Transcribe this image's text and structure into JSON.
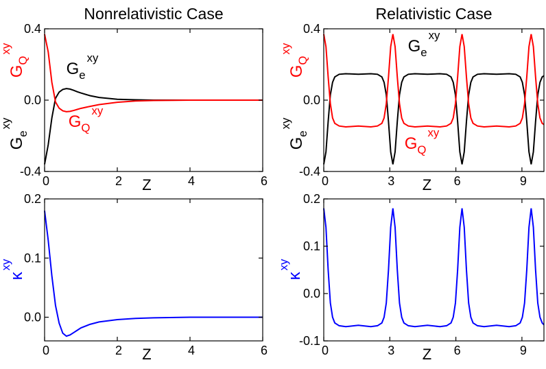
{
  "chart_data": [
    {
      "type": "line",
      "title": "Nonrelativistic Case",
      "x": [
        0,
        0.1,
        0.2,
        0.3,
        0.4,
        0.5,
        0.6,
        0.7,
        0.8,
        0.9,
        1.0,
        1.25,
        1.5,
        2,
        2.5,
        3,
        4,
        5,
        6
      ],
      "series": [
        {
          "color": "#000000",
          "values": [
            -0.36,
            -0.25,
            -0.1,
            0.01,
            0.045,
            0.06,
            0.065,
            0.062,
            0.055,
            0.047,
            0.04,
            0.025,
            0.015,
            0.005,
            0.002,
            0,
            0,
            0,
            0
          ]
        },
        {
          "color": "#ff0000",
          "values": [
            0.37,
            0.27,
            0.1,
            -0.01,
            -0.045,
            -0.06,
            -0.065,
            -0.063,
            -0.058,
            -0.052,
            -0.046,
            -0.035,
            -0.025,
            -0.012,
            -0.005,
            -0.002,
            0,
            0,
            0
          ]
        }
      ],
      "xlim": [
        0,
        6
      ],
      "xticks": [
        0,
        2,
        4,
        6
      ],
      "ylim": [
        -0.4,
        0.4
      ],
      "yticks": [
        -0.4,
        {
          "value": 0,
          "label": "0.0"
        },
        0.4
      ],
      "xlabel": "Z",
      "ylabel": [
        {
          "base": "G",
          "sub": "e",
          "sup": "xy",
          "color": "#000000"
        },
        {
          "base": "G",
          "sub": "Q",
          "sup": "xy",
          "color": "#ff0000"
        }
      ],
      "annotations": [
        {
          "base": "G",
          "sub": "e",
          "sup": "xy",
          "color": "#000000"
        },
        {
          "base": "G",
          "sub": "Q",
          "sup": "xy",
          "color": "#ff0000"
        }
      ]
    },
    {
      "type": "line",
      "title": "Relativistic Case",
      "x": [
        0,
        0.1,
        0.2,
        0.3,
        0.4,
        0.5,
        0.7,
        1.0,
        1.57,
        2.14,
        2.44,
        2.64,
        2.74,
        2.84,
        2.94,
        3.04,
        3.14,
        3.24,
        3.34,
        3.44,
        3.54,
        3.64,
        3.84,
        4.14,
        4.71,
        5.28,
        5.58,
        5.78,
        5.88,
        5.98,
        6.08,
        6.18,
        6.28,
        6.38,
        6.48,
        6.58,
        6.68,
        6.78,
        6.98,
        7.28,
        7.85,
        8.42,
        8.72,
        8.92,
        9.02,
        9.12,
        9.22,
        9.32,
        9.42,
        9.52,
        9.62,
        9.72,
        9.82,
        9.92,
        10.0
      ],
      "series": [
        {
          "color": "#000000",
          "values": [
            -0.36,
            -0.29,
            -0.12,
            0.03,
            0.1,
            0.13,
            0.145,
            0.148,
            0.145,
            0.148,
            0.145,
            0.13,
            0.1,
            0.03,
            -0.12,
            -0.29,
            -0.36,
            -0.29,
            -0.12,
            0.03,
            0.1,
            0.13,
            0.145,
            0.148,
            0.145,
            0.148,
            0.145,
            0.13,
            0.1,
            0.03,
            -0.12,
            -0.29,
            -0.36,
            -0.29,
            -0.12,
            0.03,
            0.1,
            0.13,
            0.145,
            0.148,
            0.145,
            0.148,
            0.145,
            0.13,
            0.1,
            0.03,
            -0.12,
            -0.29,
            -0.36,
            -0.29,
            -0.12,
            0.03,
            0.1,
            0.13,
            0.137
          ]
        },
        {
          "color": "#ff0000",
          "values": [
            0.37,
            0.3,
            0.13,
            -0.02,
            -0.1,
            -0.13,
            -0.145,
            -0.15,
            -0.145,
            -0.15,
            -0.145,
            -0.13,
            -0.1,
            -0.02,
            0.13,
            0.3,
            0.37,
            0.3,
            0.13,
            -0.02,
            -0.1,
            -0.13,
            -0.145,
            -0.15,
            -0.145,
            -0.15,
            -0.145,
            -0.13,
            -0.1,
            -0.02,
            0.13,
            0.3,
            0.37,
            0.3,
            0.13,
            -0.02,
            -0.1,
            -0.13,
            -0.145,
            -0.15,
            -0.145,
            -0.15,
            -0.145,
            -0.13,
            -0.1,
            -0.02,
            0.13,
            0.3,
            0.37,
            0.3,
            0.13,
            -0.02,
            -0.1,
            -0.13,
            -0.137
          ]
        }
      ],
      "xlim": [
        0,
        10
      ],
      "xticks": [
        0,
        3,
        6,
        9
      ],
      "ylim": [
        -0.4,
        0.4
      ],
      "yticks": [
        -0.4,
        {
          "value": 0,
          "label": "0.0"
        },
        0.4
      ],
      "xlabel": "Z",
      "ylabel": [
        {
          "base": "G",
          "sub": "e",
          "sup": "xy",
          "color": "#000000"
        },
        {
          "base": "G",
          "sub": "Q",
          "sup": "xy",
          "color": "#ff0000"
        }
      ],
      "annotations": [
        {
          "base": "G",
          "sub": "e",
          "sup": "xy",
          "color": "#000000"
        },
        {
          "base": "G",
          "sub": "Q",
          "sup": "xy",
          "color": "#ff0000"
        }
      ]
    },
    {
      "type": "line",
      "x": [
        0,
        0.1,
        0.2,
        0.3,
        0.4,
        0.5,
        0.6,
        0.7,
        0.8,
        0.9,
        1.0,
        1.25,
        1.5,
        2,
        2.5,
        3,
        4,
        5,
        6
      ],
      "series": [
        {
          "color": "#0000ff",
          "values": [
            0.18,
            0.13,
            0.07,
            0.02,
            -0.01,
            -0.027,
            -0.032,
            -0.03,
            -0.026,
            -0.022,
            -0.018,
            -0.012,
            -0.008,
            -0.004,
            -0.002,
            -0.001,
            0,
            0,
            0
          ]
        }
      ],
      "xlim": [
        0,
        6
      ],
      "xticks": [
        0,
        2,
        4,
        6
      ],
      "ylim": [
        -0.04,
        0.2
      ],
      "yticks": [
        {
          "value": 0,
          "label": "0.0"
        },
        0.1,
        0.2
      ],
      "xlabel": "Z",
      "ylabel": [
        {
          "base": "κ",
          "sup": "xy",
          "color": "#0000ff"
        }
      ]
    },
    {
      "type": "line",
      "x": [
        0,
        0.1,
        0.2,
        0.3,
        0.4,
        0.5,
        0.7,
        1.0,
        1.57,
        2.14,
        2.44,
        2.64,
        2.74,
        2.84,
        2.94,
        3.04,
        3.14,
        3.24,
        3.34,
        3.44,
        3.54,
        3.64,
        3.84,
        4.14,
        4.71,
        5.28,
        5.58,
        5.78,
        5.88,
        5.98,
        6.08,
        6.18,
        6.28,
        6.38,
        6.48,
        6.58,
        6.68,
        6.78,
        6.98,
        7.28,
        7.85,
        8.42,
        8.72,
        8.92,
        9.02,
        9.12,
        9.22,
        9.32,
        9.42,
        9.52,
        9.62,
        9.72,
        9.82,
        9.92,
        10.0
      ],
      "series": [
        {
          "color": "#0000ff",
          "values": [
            0.18,
            0.14,
            0.05,
            -0.02,
            -0.05,
            -0.062,
            -0.068,
            -0.07,
            -0.067,
            -0.07,
            -0.068,
            -0.062,
            -0.05,
            -0.02,
            0.05,
            0.14,
            0.18,
            0.14,
            0.05,
            -0.02,
            -0.05,
            -0.062,
            -0.068,
            -0.07,
            -0.067,
            -0.07,
            -0.068,
            -0.062,
            -0.05,
            -0.02,
            0.05,
            0.14,
            0.18,
            0.14,
            0.05,
            -0.02,
            -0.05,
            -0.062,
            -0.068,
            -0.07,
            -0.067,
            -0.07,
            -0.068,
            -0.062,
            -0.05,
            -0.02,
            0.05,
            0.14,
            0.18,
            0.14,
            0.05,
            -0.02,
            -0.05,
            -0.062,
            -0.066
          ]
        }
      ],
      "xlim": [
        0,
        10
      ],
      "xticks": [
        0,
        3,
        6,
        9
      ],
      "ylim": [
        -0.1,
        0.2
      ],
      "yticks": [
        -0.1,
        {
          "value": 0,
          "label": "0.0"
        },
        0.1,
        0.2
      ],
      "xlabel": "Z",
      "ylabel": [
        {
          "base": "κ",
          "sup": "xy",
          "color": "#0000ff"
        }
      ]
    }
  ]
}
